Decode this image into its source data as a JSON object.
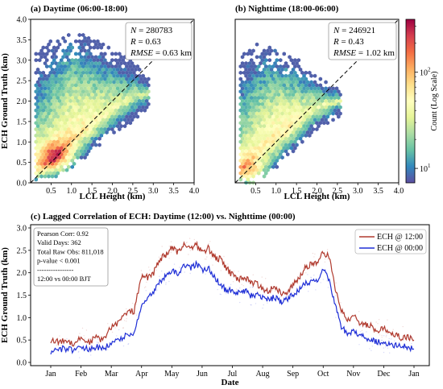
{
  "panel_a": {
    "title": "(a) Daytime (06:00-18:00)",
    "xlabel": "LCL Height (km)",
    "ylabel": "ECH Ground Truth (km)",
    "stats": {
      "n_label": "N",
      "n_value": "280783",
      "r_label": "R",
      "r_value": "0.63",
      "rmse_label": "RMSE",
      "rmse_value": "0.63 km"
    }
  },
  "panel_b": {
    "title": "(b) Nighttime (18:00-06:00)",
    "xlabel": "LCL Height (km)",
    "stats": {
      "n_label": "N",
      "n_value": "246921",
      "r_label": "R",
      "r_value": "0.43",
      "rmse_label": "RMSE",
      "rmse_value": "1.02 km"
    }
  },
  "colorbar": {
    "label": "Count (Log Scale)",
    "ticks": [
      {
        "base": "10",
        "exp": "1",
        "value": 10
      },
      {
        "base": "10",
        "exp": "2",
        "value": 100
      }
    ],
    "range_log": [
      0.85,
      2.55
    ],
    "colormap": "Spectral_r"
  },
  "panel_c": {
    "title": "(c) Lagged Correlation of ECH: Daytime (12:00) vs. Nighttime (00:00)",
    "xlabel": "Date",
    "ylabel": "ECH Ground Truth (km)",
    "stats_lines": [
      "Pearson Corr: 0.92",
      "Valid Days: 362",
      "Total Raw Obs: 811,018",
      "p-value < 0.001",
      "----------------",
      "12:00 vs 00:00 BJT"
    ],
    "legend": [
      {
        "label": "ECH @ 12:00",
        "color": "#b03a2e"
      },
      {
        "label": "ECH @ 00:00",
        "color": "#1f2fd6"
      }
    ]
  },
  "chart_data": [
    {
      "type": "heatmap",
      "title": "(a) Daytime (06:00-18:00)",
      "xlabel": "LCL Height (km)",
      "ylabel": "ECH Ground Truth (km)",
      "xlim": [
        0,
        4.0
      ],
      "ylim": [
        0,
        4.0
      ],
      "xticks": [
        "0.5",
        "1.0",
        "1.5",
        "2.0",
        "2.5",
        "3.0",
        "3.5",
        "4.0"
      ],
      "yticks": [
        "0.0",
        "0.5",
        "1.0",
        "1.5",
        "2.0",
        "2.5",
        "3.0",
        "3.5",
        "4.0"
      ],
      "one_to_one_line": true,
      "density_model": {
        "x_range": [
          0.12,
          2.9
        ],
        "envelope_low": [
          [
            0.1,
            0
          ],
          [
            0.5,
            0.05
          ],
          [
            1.0,
            0.35
          ],
          [
            1.5,
            0.75
          ],
          [
            2.0,
            1.15
          ],
          [
            2.5,
            1.5
          ],
          [
            2.9,
            1.75
          ]
        ],
        "envelope_high": [
          [
            0.1,
            3.2
          ],
          [
            0.5,
            3.5
          ],
          [
            1.0,
            3.65
          ],
          [
            1.5,
            3.6
          ],
          [
            2.0,
            3.3
          ],
          [
            2.5,
            3.0
          ],
          [
            2.9,
            2.55
          ]
        ],
        "ridge": [
          [
            0.1,
            0.2
          ],
          [
            0.5,
            0.55
          ],
          [
            1.0,
            1.05
          ],
          [
            1.5,
            1.45
          ],
          [
            2.0,
            1.8
          ],
          [
            2.5,
            2.1
          ],
          [
            2.9,
            2.2
          ]
        ],
        "peak": [
          0.6,
          0.6
        ],
        "peak_log_count": 2.5
      }
    },
    {
      "type": "heatmap",
      "title": "(b) Nighttime (18:00-06:00)",
      "xlabel": "LCL Height (km)",
      "xlim": [
        0,
        4.0
      ],
      "ylim": [
        0,
        4.0
      ],
      "xticks": [
        "0.5",
        "1.0",
        "1.5",
        "2.0",
        "2.5",
        "3.0",
        "3.5",
        "4.0"
      ],
      "one_to_one_line": true,
      "density_model": {
        "x_range": [
          0.12,
          2.6
        ],
        "envelope_low": [
          [
            0.1,
            0
          ],
          [
            0.5,
            0
          ],
          [
            1.0,
            0.35
          ],
          [
            1.5,
            0.85
          ],
          [
            2.0,
            1.3
          ],
          [
            2.5,
            1.6
          ],
          [
            2.6,
            1.65
          ]
        ],
        "envelope_high": [
          [
            0.1,
            3.05
          ],
          [
            0.5,
            3.45
          ],
          [
            1.0,
            3.25
          ],
          [
            1.5,
            3.05
          ],
          [
            2.0,
            2.6
          ],
          [
            2.5,
            2.35
          ],
          [
            2.6,
            2.25
          ]
        ],
        "ridge": [
          [
            0.1,
            0.3
          ],
          [
            0.5,
            0.7
          ],
          [
            1.0,
            1.1
          ],
          [
            1.5,
            1.5
          ],
          [
            2.0,
            1.85
          ],
          [
            2.5,
            2.0
          ],
          [
            2.6,
            2.0
          ]
        ],
        "peak": [
          0.35,
          0.2
        ],
        "peak_log_count": 2.45
      }
    },
    {
      "type": "line",
      "title": "(c) Lagged Correlation of ECH: Daytime (12:00) vs. Nighttime (00:00)",
      "xlabel": "Date",
      "ylabel": "ECH Ground Truth (km)",
      "ylim": [
        0.0,
        3.0
      ],
      "yticks": [
        "0.0",
        "0.5",
        "1.0",
        "1.5",
        "2.0",
        "2.5",
        "3.0"
      ],
      "categories": [
        "Jan",
        "Feb",
        "Mar",
        "Apr",
        "May",
        "Jun",
        "Jul",
        "Aug",
        "Sep",
        "Oct",
        "Nov",
        "Dec",
        "Jan"
      ],
      "x_axis_unit": "month_start",
      "series": [
        {
          "name": "ECH @ 12:00",
          "color": "#b03a2e",
          "points": [
            [
              0,
              0.5
            ],
            [
              0.25,
              0.45
            ],
            [
              0.5,
              0.5
            ],
            [
              0.75,
              0.42
            ],
            [
              1,
              0.55
            ],
            [
              1.25,
              0.45
            ],
            [
              1.5,
              0.55
            ],
            [
              1.75,
              0.5
            ],
            [
              2,
              0.8
            ],
            [
              2.25,
              0.9
            ],
            [
              2.5,
              1.1
            ],
            [
              2.75,
              1.15
            ],
            [
              3,
              1.9
            ],
            [
              3.2,
              1.9
            ],
            [
              3.4,
              2.0
            ],
            [
              3.6,
              2.3
            ],
            [
              3.8,
              2.4
            ],
            [
              4,
              2.55
            ],
            [
              4.2,
              2.45
            ],
            [
              4.4,
              2.65
            ],
            [
              4.6,
              2.55
            ],
            [
              4.8,
              2.65
            ],
            [
              5,
              2.45
            ],
            [
              5.2,
              2.55
            ],
            [
              5.4,
              2.35
            ],
            [
              5.6,
              2.3
            ],
            [
              5.8,
              2.1
            ],
            [
              6,
              1.95
            ],
            [
              6.2,
              1.85
            ],
            [
              6.4,
              1.9
            ],
            [
              6.6,
              1.8
            ],
            [
              6.8,
              1.75
            ],
            [
              7,
              1.65
            ],
            [
              7.2,
              1.6
            ],
            [
              7.4,
              1.7
            ],
            [
              7.6,
              1.55
            ],
            [
              7.8,
              1.5
            ],
            [
              8,
              1.75
            ],
            [
              8.2,
              1.85
            ],
            [
              8.4,
              2.1
            ],
            [
              8.6,
              2.2
            ],
            [
              8.8,
              2.2
            ],
            [
              9,
              2.45
            ],
            [
              9.2,
              2.35
            ],
            [
              9.4,
              1.65
            ],
            [
              9.6,
              1.15
            ],
            [
              9.8,
              0.95
            ],
            [
              10,
              1.05
            ],
            [
              10.2,
              0.9
            ],
            [
              10.4,
              0.85
            ],
            [
              10.6,
              0.8
            ],
            [
              10.8,
              0.7
            ],
            [
              11,
              0.75
            ],
            [
              11.2,
              0.7
            ],
            [
              11.4,
              0.6
            ],
            [
              11.6,
              0.55
            ],
            [
              11.8,
              0.55
            ],
            [
              12,
              0.5
            ]
          ]
        },
        {
          "name": "ECH @ 00:00",
          "color": "#1f2fd6",
          "points": [
            [
              0,
              0.25
            ],
            [
              0.25,
              0.3
            ],
            [
              0.5,
              0.3
            ],
            [
              0.75,
              0.28
            ],
            [
              1,
              0.35
            ],
            [
              1.25,
              0.3
            ],
            [
              1.5,
              0.35
            ],
            [
              1.75,
              0.3
            ],
            [
              2,
              0.45
            ],
            [
              2.25,
              0.5
            ],
            [
              2.5,
              0.6
            ],
            [
              2.75,
              0.65
            ],
            [
              3,
              1.3
            ],
            [
              3.2,
              1.45
            ],
            [
              3.4,
              1.55
            ],
            [
              3.6,
              1.8
            ],
            [
              3.8,
              1.95
            ],
            [
              4,
              2.05
            ],
            [
              4.2,
              2.0
            ],
            [
              4.4,
              2.15
            ],
            [
              4.6,
              2.1
            ],
            [
              4.8,
              2.2
            ],
            [
              5,
              2.05
            ],
            [
              5.2,
              2.1
            ],
            [
              5.4,
              1.9
            ],
            [
              5.6,
              1.75
            ],
            [
              5.8,
              1.6
            ],
            [
              6,
              1.6
            ],
            [
              6.2,
              1.55
            ],
            [
              6.4,
              1.6
            ],
            [
              6.6,
              1.5
            ],
            [
              6.8,
              1.5
            ],
            [
              7,
              1.45
            ],
            [
              7.2,
              1.4
            ],
            [
              7.4,
              1.45
            ],
            [
              7.6,
              1.35
            ],
            [
              7.8,
              1.4
            ],
            [
              8,
              1.5
            ],
            [
              8.2,
              1.6
            ],
            [
              8.4,
              1.75
            ],
            [
              8.6,
              1.8
            ],
            [
              8.8,
              1.85
            ],
            [
              9,
              2.05
            ],
            [
              9.2,
              1.85
            ],
            [
              9.4,
              1.25
            ],
            [
              9.6,
              0.8
            ],
            [
              9.8,
              0.65
            ],
            [
              10,
              0.7
            ],
            [
              10.2,
              0.6
            ],
            [
              10.4,
              0.55
            ],
            [
              10.6,
              0.5
            ],
            [
              10.8,
              0.45
            ],
            [
              11,
              0.45
            ],
            [
              11.2,
              0.4
            ],
            [
              11.4,
              0.38
            ],
            [
              11.6,
              0.35
            ],
            [
              11.8,
              0.35
            ],
            [
              12,
              0.3
            ]
          ]
        }
      ]
    }
  ]
}
